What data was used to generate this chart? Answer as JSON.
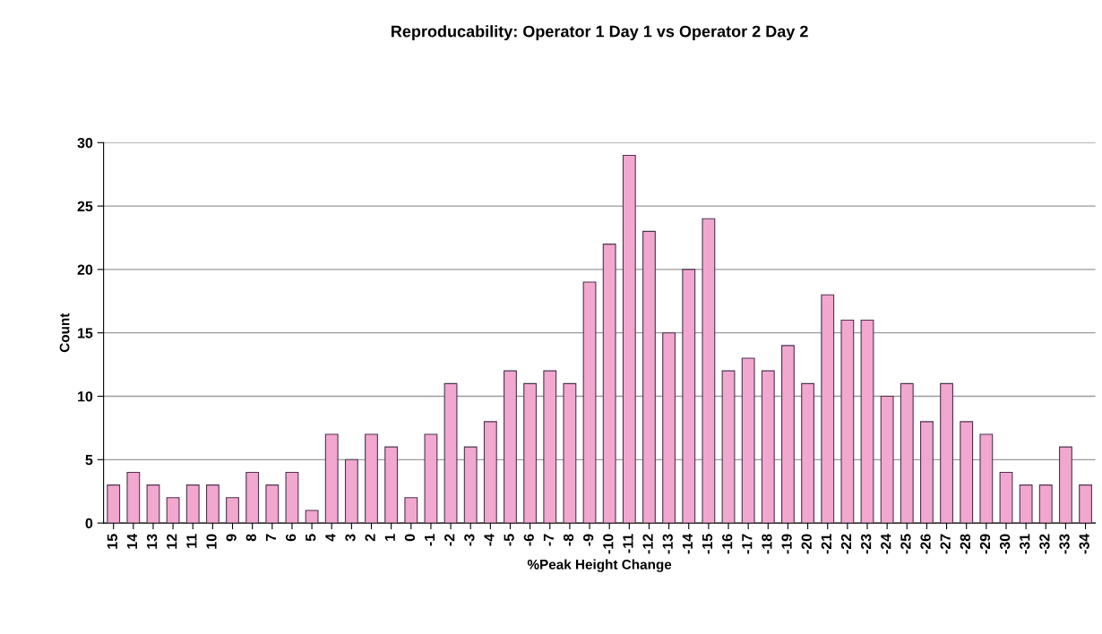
{
  "chart_data": {
    "type": "bar",
    "title": "Reproducability: Operator 1 Day 1 vs Operator 2 Day 2",
    "xlabel": "%Peak Height Change",
    "ylabel": "Count",
    "categories": [
      "15",
      "14",
      "13",
      "12",
      "11",
      "10",
      "9",
      "8",
      "7",
      "6",
      "5",
      "4",
      "3",
      "2",
      "1",
      "0",
      "-1",
      "-2",
      "-3",
      "-4",
      "-5",
      "-6",
      "-7",
      "-8",
      "-9",
      "-10",
      "-11",
      "-12",
      "-13",
      "-14",
      "-15",
      "-16",
      "-17",
      "-18",
      "-19",
      "-20",
      "-21",
      "-22",
      "-23",
      "-24",
      "-25",
      "-26",
      "-27",
      "-28",
      "-29",
      "-30",
      "-31",
      "-32",
      "-33",
      "-34"
    ],
    "values": [
      3,
      4,
      3,
      2,
      3,
      3,
      2,
      4,
      3,
      4,
      1,
      7,
      5,
      7,
      6,
      2,
      7,
      11,
      6,
      8,
      12,
      11,
      12,
      11,
      19,
      22,
      29,
      23,
      15,
      20,
      24,
      12,
      13,
      12,
      14,
      11,
      18,
      16,
      16,
      10,
      11,
      8,
      11,
      8,
      7,
      4,
      3,
      3,
      6,
      3
    ],
    "color": "#f2a7cf",
    "ylim": [
      0,
      30
    ],
    "yticks": [
      0,
      5,
      10,
      15,
      20,
      25,
      30
    ],
    "grid": "y",
    "legend": false
  }
}
